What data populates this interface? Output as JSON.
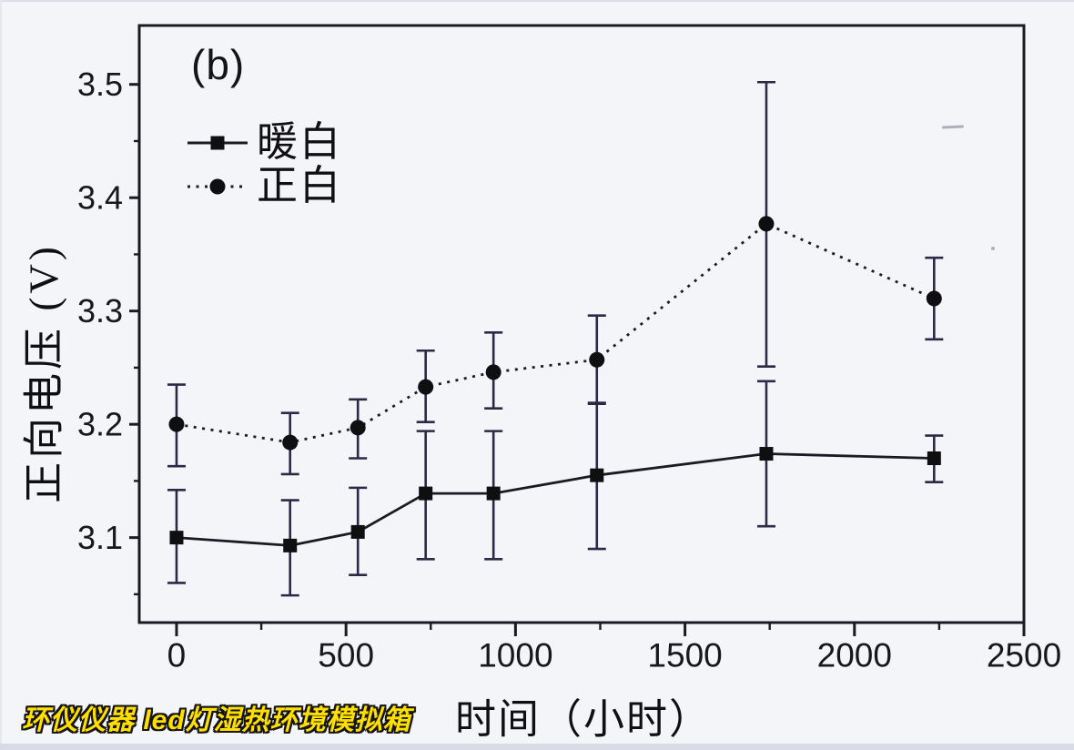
{
  "panel_label": "(b)",
  "watermark": {
    "text": "环仪仪器 led灯湿热环境模拟箱",
    "fill_color": "#ffdf00",
    "outline_color": "#141414"
  },
  "legend": {
    "items": [
      {
        "label": "暖白",
        "marker": "square",
        "line_style": "solid"
      },
      {
        "label": "正白",
        "marker": "circle",
        "line_style": "dotted"
      }
    ]
  },
  "chart_data": {
    "type": "line",
    "title": "",
    "xlabel": "时间（小时）",
    "ylabel": "正向电压 (V)",
    "xlim": [
      -110,
      2500
    ],
    "ylim": [
      3.025,
      3.552
    ],
    "grid": false,
    "legend_position": "top-left",
    "x_ticks_major": [
      0,
      500,
      1000,
      1500,
      2000,
      2500
    ],
    "x_tick_labels": [
      "0",
      "500",
      "1000",
      "1500",
      "2000",
      "2500"
    ],
    "x_ticks_minor": [
      250,
      750,
      1250,
      1750,
      2250
    ],
    "y_ticks_major": [
      3.1,
      3.2,
      3.3,
      3.4,
      3.5
    ],
    "y_tick_labels": [
      "3.1",
      "3.2",
      "3.3",
      "3.4",
      "3.5"
    ],
    "y_ticks_minor": [
      3.05,
      3.15,
      3.25,
      3.35,
      3.45
    ],
    "x": [
      0,
      335,
      535,
      735,
      935,
      1240,
      1740,
      2235
    ],
    "series": [
      {
        "name": "暖白",
        "marker": "square",
        "line_style": "solid",
        "y": [
          3.1,
          3.093,
          3.105,
          3.139,
          3.139,
          3.155,
          3.174,
          3.17
        ],
        "err_up": [
          0.042,
          0.04,
          0.039,
          0.055,
          0.055,
          0.063,
          0.064,
          0.02
        ],
        "err_down": [
          0.04,
          0.044,
          0.038,
          0.058,
          0.058,
          0.065,
          0.064,
          0.021
        ]
      },
      {
        "name": "正白",
        "marker": "circle",
        "line_style": "dotted",
        "y": [
          3.2,
          3.184,
          3.197,
          3.233,
          3.246,
          3.257,
          3.377,
          3.311
        ],
        "err_up": [
          0.035,
          0.026,
          0.025,
          0.032,
          0.035,
          0.039,
          0.125,
          0.036
        ],
        "err_down": [
          0.037,
          0.028,
          0.027,
          0.031,
          0.032,
          0.038,
          0.126,
          0.036
        ]
      }
    ],
    "colors": {
      "ink": "#1b1a22",
      "marker": "#0f0f12",
      "error_bar": "#2c2845",
      "tick_label": "#17171c",
      "background": "#f4f5f9"
    }
  }
}
